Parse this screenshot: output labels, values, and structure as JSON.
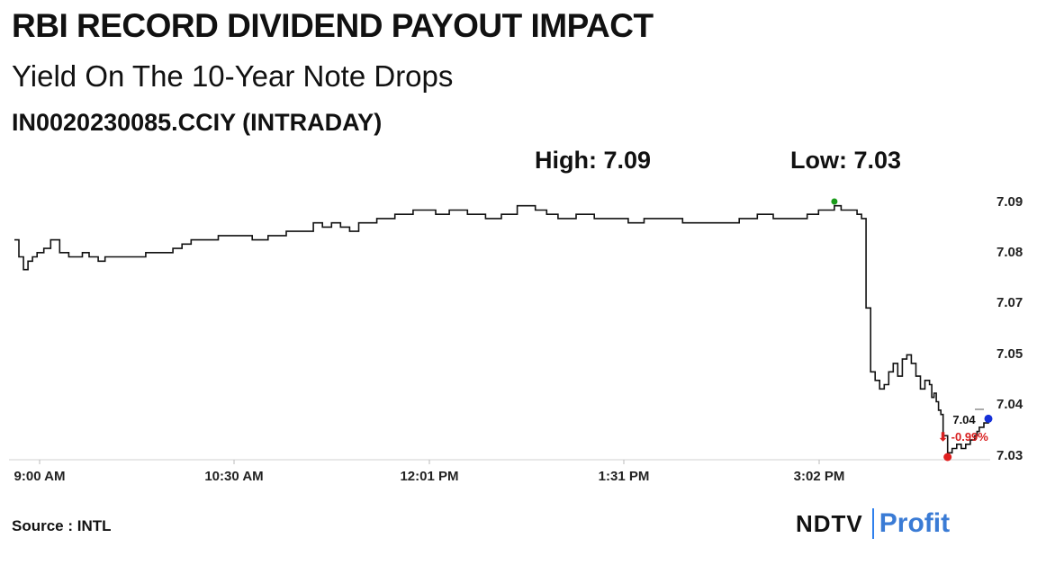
{
  "title": "RBI RECORD DIVIDEND PAYOUT IMPACT",
  "subtitle": "Yield On The 10-Year Note Drops",
  "instrument": "IN0020230085.CCIY (INTRADAY)",
  "high_label": "High: 7.09",
  "low_label": "Low: 7.03",
  "source": "Source : INTL",
  "logo": {
    "ndtv": "NDTV",
    "profit": "Profit"
  },
  "colors": {
    "line": "#111111",
    "high_marker": "#1a9b1a",
    "low_marker": "#e02020",
    "last_marker": "#1530d8",
    "change_text": "#d82020",
    "axis": "#d0d0d0",
    "logo_accent": "#3a7bd5"
  },
  "chart_data": {
    "type": "line",
    "title": "",
    "xlabel": "",
    "ylabel": "",
    "x_ticks": [
      "9:00 AM",
      "10:30 AM",
      "12:01 PM",
      "1:31 PM",
      "3:02 PM"
    ],
    "y_ticks": [
      "7.09",
      "7.08",
      "7.07",
      "7.05",
      "7.04",
      "7.03"
    ],
    "ylim": [
      7.03,
      7.09
    ],
    "grid": false,
    "series": [
      {
        "x": [
          "9:00",
          "9:02",
          "9:04",
          "9:06",
          "9:08",
          "9:10",
          "9:13",
          "9:16",
          "9:20",
          "9:24",
          "9:27",
          "9:30",
          "9:33",
          "9:37",
          "9:40",
          "9:46",
          "9:52",
          "9:58",
          "10:05",
          "10:10",
          "10:14",
          "10:18",
          "10:22",
          "10:26",
          "10:30",
          "10:35",
          "10:40",
          "10:45",
          "10:52",
          "11:00",
          "11:08",
          "11:12",
          "11:16",
          "11:20",
          "11:24",
          "11:28",
          "11:32",
          "11:40",
          "11:48",
          "11:52",
          "11:56",
          "12:01",
          "12:06",
          "12:12",
          "12:20",
          "12:28",
          "12:35",
          "12:42",
          "12:50",
          "12:55",
          "13:00",
          "13:08",
          "13:16",
          "13:24",
          "13:31",
          "13:38",
          "13:45",
          "13:55",
          "14:05",
          "14:12",
          "14:20",
          "14:28",
          "14:35",
          "14:42",
          "14:50",
          "14:55",
          "15:00",
          "15:02",
          "15:05",
          "15:10",
          "15:12",
          "15:14",
          "15:16",
          "15:18",
          "15:20",
          "15:22",
          "15:24",
          "15:26",
          "15:28",
          "15:30",
          "15:32",
          "15:34",
          "15:36",
          "15:38",
          "15:40",
          "15:42",
          "15:44",
          "15:45",
          "15:46",
          "15:47",
          "15:48",
          "15:49",
          "15:50",
          "15:52",
          "15:54",
          "15:56",
          "15:58",
          "16:00",
          "16:02",
          "16:04",
          "16:05",
          "16:06",
          "16:08",
          "16:10"
        ],
        "y": [
          7.081,
          7.077,
          7.074,
          7.076,
          7.077,
          7.078,
          7.079,
          7.081,
          7.078,
          7.077,
          7.077,
          7.078,
          7.077,
          7.076,
          7.077,
          7.077,
          7.077,
          7.078,
          7.078,
          7.079,
          7.08,
          7.081,
          7.081,
          7.081,
          7.082,
          7.082,
          7.082,
          7.081,
          7.082,
          7.083,
          7.083,
          7.085,
          7.084,
          7.085,
          7.084,
          7.083,
          7.085,
          7.086,
          7.087,
          7.087,
          7.088,
          7.088,
          7.087,
          7.088,
          7.087,
          7.086,
          7.087,
          7.089,
          7.088,
          7.087,
          7.086,
          7.087,
          7.086,
          7.086,
          7.085,
          7.086,
          7.086,
          7.085,
          7.085,
          7.085,
          7.086,
          7.087,
          7.086,
          7.086,
          7.087,
          7.088,
          7.088,
          7.089,
          7.088,
          7.088,
          7.087,
          7.086,
          7.065,
          7.05,
          7.048,
          7.046,
          7.047,
          7.05,
          7.052,
          7.049,
          7.053,
          7.054,
          7.052,
          7.049,
          7.046,
          7.048,
          7.047,
          7.044,
          7.045,
          7.043,
          7.041,
          7.04,
          7.035,
          7.031,
          7.032,
          7.033,
          7.032,
          7.033,
          7.034,
          7.035,
          7.036,
          7.037,
          7.038,
          7.039
        ]
      }
    ],
    "markers": [
      {
        "name": "High",
        "x": "15:02",
        "y": 7.09
      },
      {
        "name": "Low",
        "x": "15:52",
        "y": 7.03
      },
      {
        "name": "Last",
        "x": "16:10",
        "y": 7.039
      }
    ],
    "last_value": "7.04",
    "change": "-0.99%"
  }
}
